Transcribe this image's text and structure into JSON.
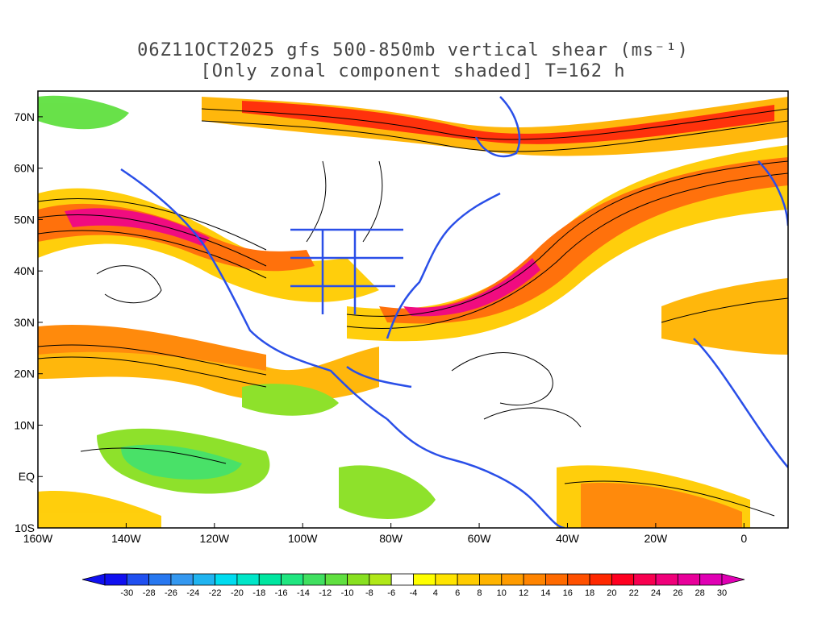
{
  "title": {
    "line1": "06Z11OCT2025 gfs 500-850mb vertical shear (ms⁻¹)",
    "line2": "[Only zonal component shaded] T=162 h"
  },
  "axes": {
    "x_ticks": [
      {
        "lon": -160,
        "label": "160W"
      },
      {
        "lon": -140,
        "label": "140W"
      },
      {
        "lon": -120,
        "label": "120W"
      },
      {
        "lon": -100,
        "label": "100W"
      },
      {
        "lon": -80,
        "label": "80W"
      },
      {
        "lon": -60,
        "label": "60W"
      },
      {
        "lon": -40,
        "label": "40W"
      },
      {
        "lon": -20,
        "label": "20W"
      },
      {
        "lon": 0,
        "label": "0"
      }
    ],
    "y_ticks": [
      {
        "lat": 70,
        "label": "70N"
      },
      {
        "lat": 60,
        "label": "60N"
      },
      {
        "lat": 50,
        "label": "50N"
      },
      {
        "lat": 40,
        "label": "40N"
      },
      {
        "lat": 30,
        "label": "30N"
      },
      {
        "lat": 20,
        "label": "20N"
      },
      {
        "lat": 10,
        "label": "10N"
      },
      {
        "lat": 0,
        "label": "EQ"
      },
      {
        "lat": -10,
        "label": "10S"
      }
    ],
    "lon_range": [
      -160,
      10
    ],
    "lat_range": [
      -10,
      75
    ]
  },
  "colorbar": {
    "labels": [
      "-30",
      "-28",
      "-26",
      "-24",
      "-22",
      "-20",
      "-18",
      "-16",
      "-14",
      "-12",
      "-10",
      "-8",
      "-6",
      "-4",
      "4",
      "6",
      "8",
      "10",
      "12",
      "14",
      "16",
      "18",
      "20",
      "22",
      "24",
      "26",
      "28",
      "30"
    ],
    "colors": [
      "#1010f0",
      "#2050f0",
      "#2878f0",
      "#3498f0",
      "#20b4f0",
      "#00dcf0",
      "#00e6c8",
      "#00e6a0",
      "#20e680",
      "#40e060",
      "#60e040",
      "#88e020",
      "#b0e818",
      "#ffffff",
      "#ffff00",
      "#ffe400",
      "#ffcc00",
      "#ffb400",
      "#ff9c00",
      "#ff8400",
      "#ff6a00",
      "#ff5000",
      "#ff2800",
      "#ff0020",
      "#f80050",
      "#f0007a",
      "#e8009a",
      "#e000b4"
    ]
  },
  "colors": {
    "coastline": "#2a4fe8",
    "streamline": "#000000",
    "frame": "#000000"
  }
}
